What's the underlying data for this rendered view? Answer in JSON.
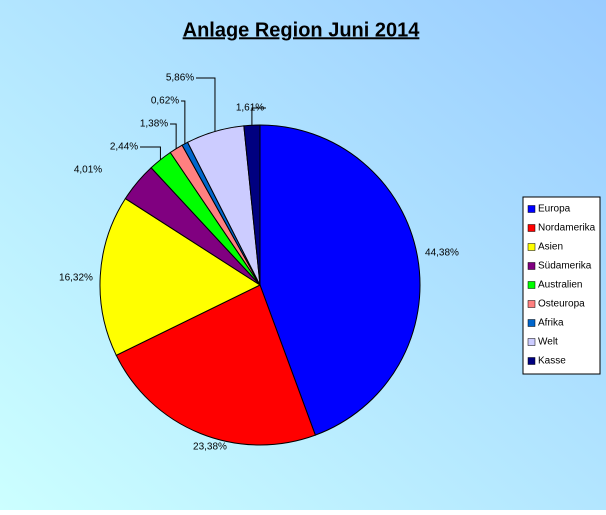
{
  "chart_data": {
    "type": "pie",
    "title": "Anlage Region Juni 2014",
    "categories": [
      "Europa",
      "Nordamerika",
      "Asien",
      "Südamerika",
      "Australien",
      "Osteuropa",
      "Afrika",
      "Welt",
      "Kasse"
    ],
    "values": [
      44.38,
      23.38,
      16.32,
      4.01,
      2.44,
      1.38,
      0.62,
      5.86,
      1.61
    ],
    "value_labels": [
      "44,38%",
      "23,38%",
      "16,32%",
      "4,01%",
      "2,44%",
      "1,38%",
      "0,62%",
      "5,86%",
      "1,61%"
    ],
    "colors": [
      "#0000ff",
      "#ff0000",
      "#ffff00",
      "#800080",
      "#00ff00",
      "#ff8080",
      "#0066cc",
      "#ccccff",
      "#000080"
    ],
    "legend": "right"
  }
}
